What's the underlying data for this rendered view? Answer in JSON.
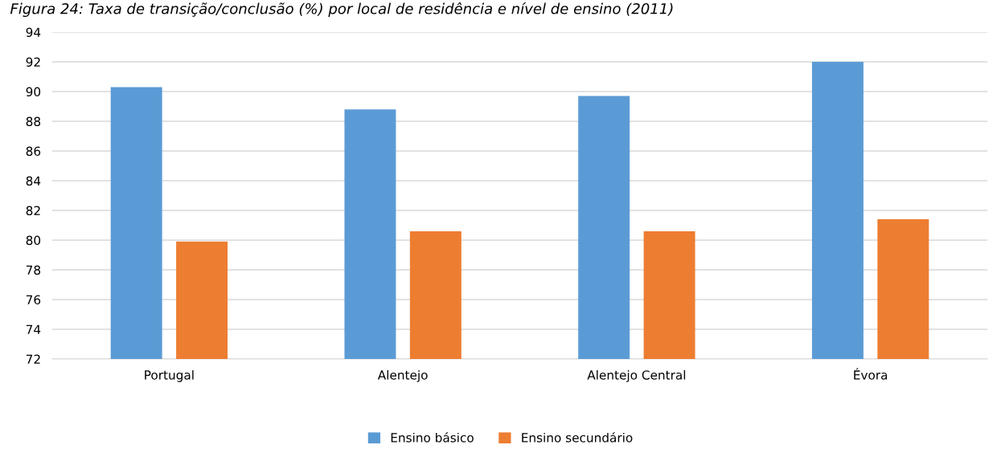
{
  "chart_data": {
    "type": "bar",
    "title": "Figura 24: Taxa de transição/conclusão (%) por local de residência e nível de ensino (2011)",
    "categories": [
      "Portugal",
      "Alentejo",
      "Alentejo Central",
      "Évora"
    ],
    "series": [
      {
        "name": "Ensino básico",
        "color": "#5b9bd5",
        "values": [
          90.3,
          88.8,
          89.7,
          92.0
        ]
      },
      {
        "name": "Ensino secundário",
        "color": "#ed7d31",
        "values": [
          79.9,
          80.6,
          80.6,
          81.4
        ]
      }
    ],
    "ylim": [
      72,
      94
    ],
    "yticks": [
      72,
      74,
      76,
      78,
      80,
      82,
      84,
      86,
      88,
      90,
      92,
      94
    ],
    "grid": "y",
    "legend": "bottom"
  }
}
